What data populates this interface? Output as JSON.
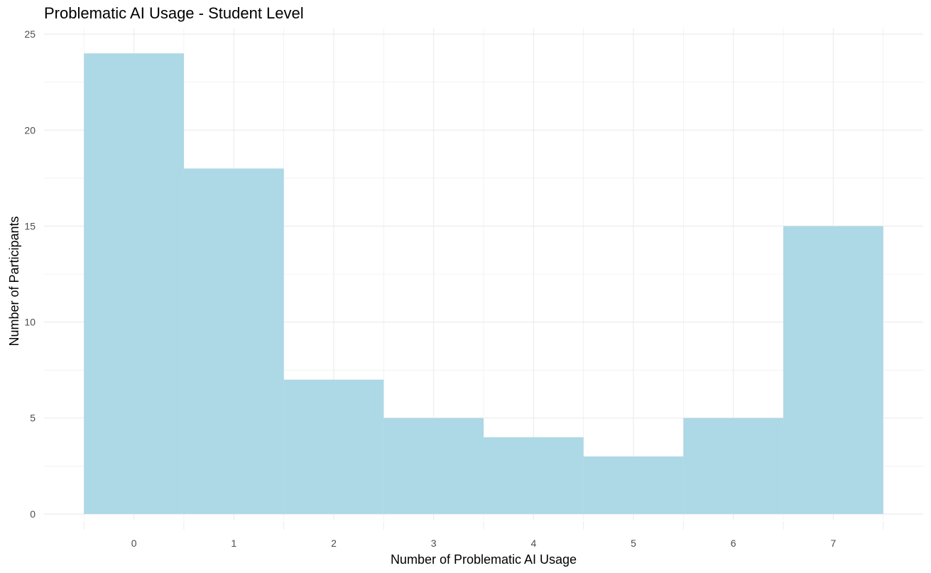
{
  "chart_data": {
    "type": "bar",
    "title": "Problematic AI Usage - Student Level",
    "xlabel": "Number of Problematic AI Usage",
    "ylabel": "Number of Participants",
    "categories": [
      "0",
      "1",
      "2",
      "3",
      "4",
      "5",
      "6",
      "7"
    ],
    "x": [
      0,
      1,
      2,
      3,
      4,
      5,
      6,
      7
    ],
    "values": [
      24,
      18,
      7,
      5,
      4,
      3,
      5,
      15
    ],
    "ylim": [
      0,
      25
    ],
    "xlim": [
      -0.9,
      7.9
    ],
    "yticks": [
      0,
      5,
      10,
      15,
      20,
      25
    ],
    "grid": true,
    "bar_color": "#add8e6",
    "grid_color": "#ebebeb"
  }
}
